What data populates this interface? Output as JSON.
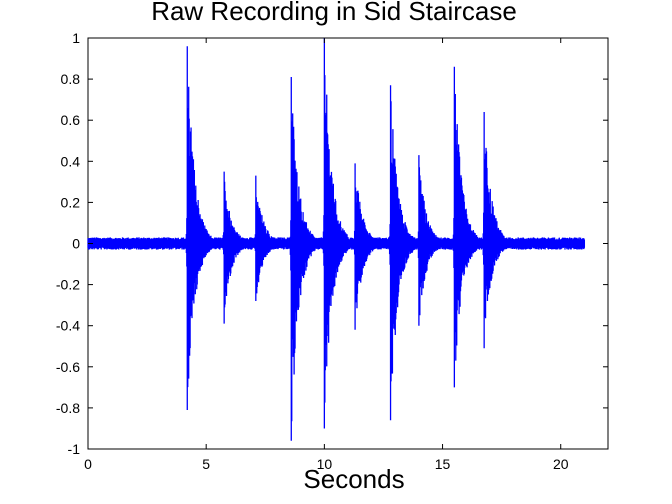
{
  "chart_data": {
    "type": "line",
    "title": "Raw Recording in Sid Staircase",
    "xlabel": "Seconds",
    "ylabel": "",
    "xlim": [
      0,
      22
    ],
    "ylim": [
      -1,
      1
    ],
    "x_ticks": [
      0,
      5,
      10,
      15,
      20
    ],
    "x_tick_labels": [
      "0",
      "5",
      "10",
      "15",
      "20"
    ],
    "y_ticks": [
      1,
      0.8,
      0.6,
      0.4,
      0.2,
      0,
      -0.2,
      -0.4,
      -0.6,
      -0.8,
      -1
    ],
    "y_tick_labels": [
      "1",
      "0.8",
      "0.6",
      "0.4",
      "0.2",
      "0",
      "-0.2",
      "-0.4",
      "-0.6",
      "-0.8",
      "-1"
    ],
    "grid": false,
    "line_color": "#0000ff",
    "signal_end_seconds": 21.0,
    "noise_floor_amplitude": 0.03,
    "bursts": [
      {
        "time": 4.2,
        "peak": 0.96,
        "trough": -0.81
      },
      {
        "time": 5.75,
        "peak": 0.35,
        "trough": -0.39
      },
      {
        "time": 7.1,
        "peak": 0.33,
        "trough": -0.28
      },
      {
        "time": 8.6,
        "peak": 0.81,
        "trough": -0.96
      },
      {
        "time": 10.0,
        "peak": 1.0,
        "trough": -0.9
      },
      {
        "time": 11.3,
        "peak": 0.39,
        "trough": -0.42
      },
      {
        "time": 12.8,
        "peak": 0.77,
        "trough": -0.86
      },
      {
        "time": 14.0,
        "peak": 0.43,
        "trough": -0.4
      },
      {
        "time": 15.5,
        "peak": 0.86,
        "trough": -0.7
      },
      {
        "time": 16.75,
        "peak": 0.64,
        "trough": -0.51
      }
    ]
  }
}
